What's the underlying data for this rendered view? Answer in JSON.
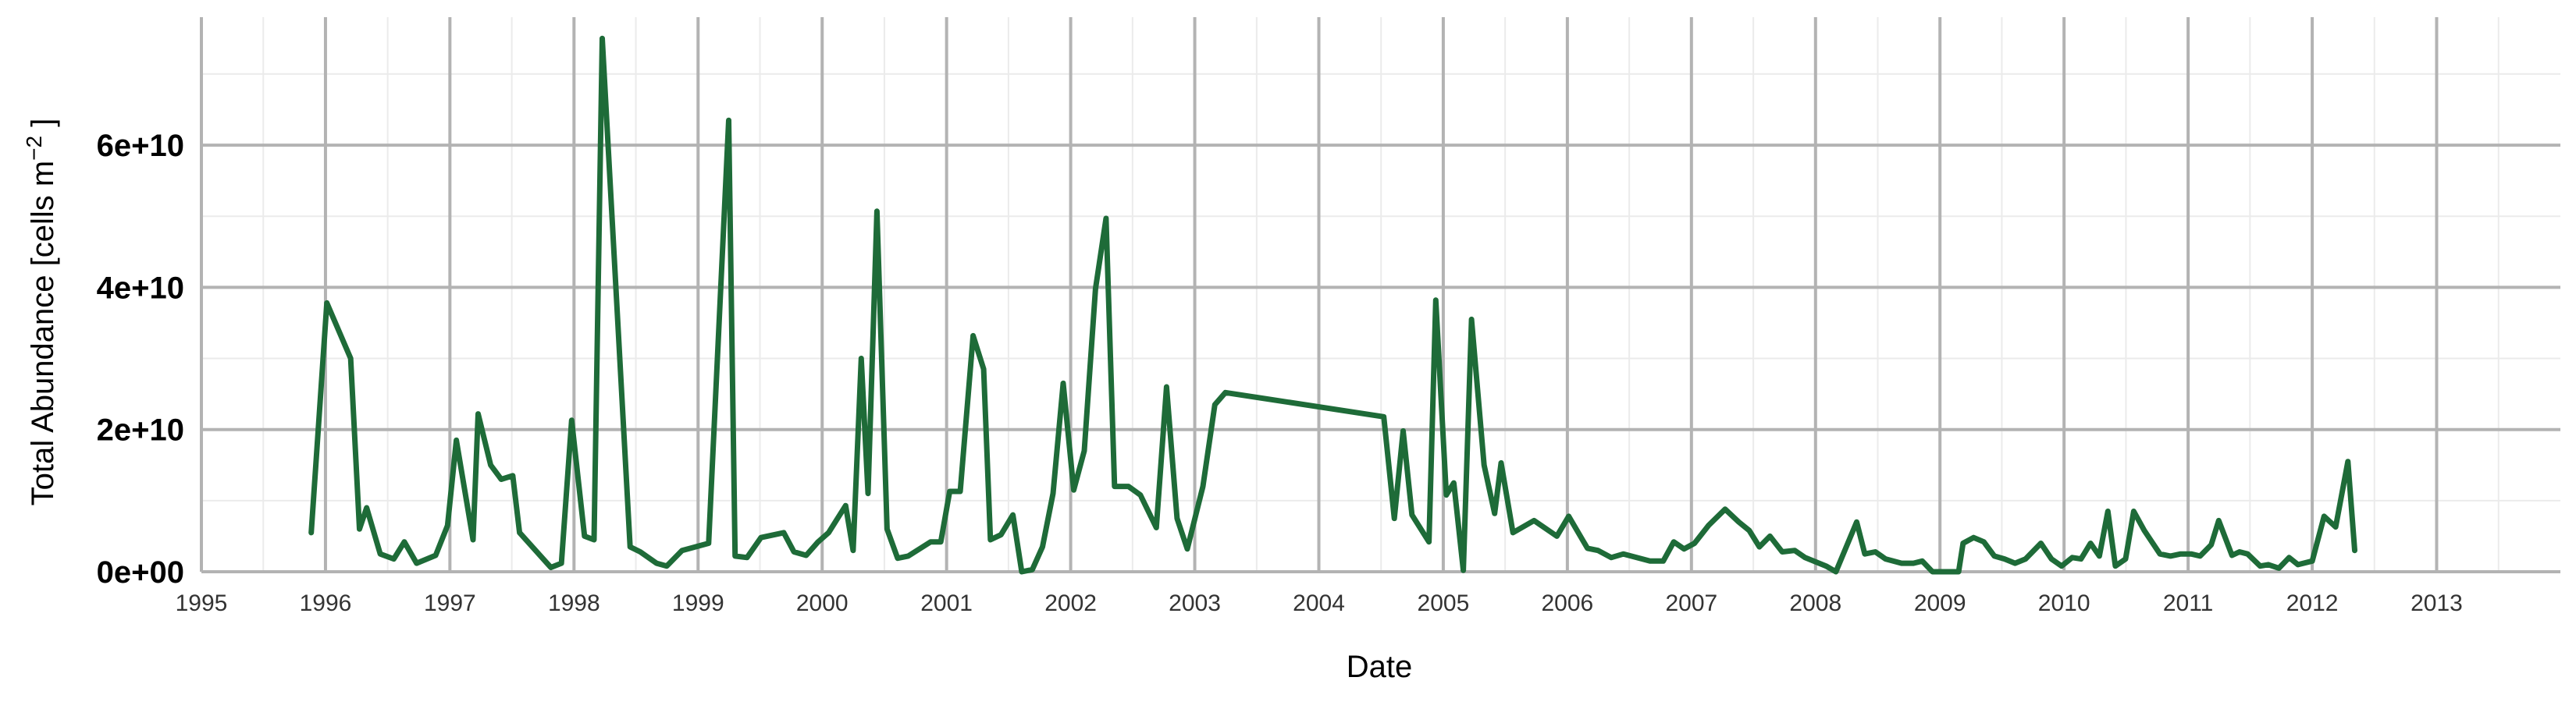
{
  "chart_data": {
    "type": "line",
    "xlabel": "Date",
    "ylabel": "Total Abundance [cells m",
    "ylabel_sup": "−2",
    "ylabel_suffix": " ]",
    "xlim": [
      "1995-01-01",
      "2013-12-31"
    ],
    "ylim": [
      0,
      78000000000
    ],
    "x_ticks": [
      "1995",
      "1996",
      "1997",
      "1998",
      "1999",
      "2000",
      "2001",
      "2002",
      "2003",
      "2004",
      "2005",
      "2006",
      "2007",
      "2008",
      "2009",
      "2010",
      "2011",
      "2012",
      "2013"
    ],
    "y_ticks": [
      {
        "value": 0,
        "label": "0e+00"
      },
      {
        "value": 20000000000,
        "label": "2e+10"
      },
      {
        "value": 40000000000,
        "label": "4e+10"
      },
      {
        "value": 60000000000,
        "label": "6e+10"
      }
    ],
    "grid": true,
    "colors": {
      "line": "#1e6b38",
      "grid_major": "#b3b3b3",
      "grid_minor": "#ebebeb"
    },
    "series": [
      {
        "color": "#1e6b38",
        "points": [
          [
            "1995-11-20",
            5500000000.0
          ],
          [
            "1996-01-05",
            37800000000.0
          ],
          [
            "1996-03-15",
            30000000000.0
          ],
          [
            "1996-04-10",
            6000000000.0
          ],
          [
            "1996-05-01",
            9000000000.0
          ],
          [
            "1996-06-10",
            2500000000.0
          ],
          [
            "1996-07-20",
            1800000000.0
          ],
          [
            "1996-08-20",
            4200000000.0
          ],
          [
            "1996-09-25",
            1200000000.0
          ],
          [
            "1996-11-20",
            2300000000.0
          ],
          [
            "1996-12-25",
            6500000000.0
          ],
          [
            "1997-01-20",
            18500000000.0
          ],
          [
            "1997-03-10",
            4500000000.0
          ],
          [
            "1997-03-25",
            22200000000.0
          ],
          [
            "1997-05-01",
            15000000000.0
          ],
          [
            "1997-06-01",
            13000000000.0
          ],
          [
            "1997-07-05",
            13500000000.0
          ],
          [
            "1997-07-25",
            5500000000.0
          ],
          [
            "1997-10-25",
            600000000.0
          ],
          [
            "1997-11-25",
            1200000000.0
          ],
          [
            "1997-12-25",
            21300000000.0
          ],
          [
            "1998-02-01",
            5000000000.0
          ],
          [
            "1998-03-01",
            4500000000.0
          ],
          [
            "1998-03-25",
            75000000000.0
          ],
          [
            "1998-06-15",
            3500000000.0
          ],
          [
            "1998-07-15",
            2800000000.0
          ],
          [
            "1998-09-01",
            1200000000.0
          ],
          [
            "1998-10-01",
            800000000.0
          ],
          [
            "1998-11-15",
            3000000000.0
          ],
          [
            "1999-02-01",
            4000000000.0
          ],
          [
            "1999-04-01",
            63500000000.0
          ],
          [
            "1999-04-20",
            2200000000.0
          ],
          [
            "1999-05-25",
            2000000000.0
          ],
          [
            "1999-07-05",
            4800000000.0
          ],
          [
            "1999-09-10",
            5500000000.0
          ],
          [
            "1999-10-10",
            2800000000.0
          ],
          [
            "1999-11-15",
            2300000000.0
          ],
          [
            "1999-12-20",
            4200000000.0
          ],
          [
            "2000-01-20",
            5500000000.0
          ],
          [
            "2000-03-10",
            9300000000.0
          ],
          [
            "2000-04-01",
            3000000000.0
          ],
          [
            "2000-04-25",
            30000000000.0
          ],
          [
            "2000-05-15",
            11000000000.0
          ],
          [
            "2000-06-10",
            50700000000.0
          ],
          [
            "2000-07-10",
            6000000000.0
          ],
          [
            "2000-08-10",
            1900000000.0
          ],
          [
            "2000-09-10",
            2200000000.0
          ],
          [
            "2000-11-15",
            4200000000.0
          ],
          [
            "2000-12-15",
            4200000000.0
          ],
          [
            "2001-01-10",
            11300000000.0
          ],
          [
            "2001-02-10",
            11300000000.0
          ],
          [
            "2001-03-20",
            33200000000.0
          ],
          [
            "2001-04-20",
            28500000000.0
          ],
          [
            "2001-05-10",
            4500000000.0
          ],
          [
            "2001-06-10",
            5200000000.0
          ],
          [
            "2001-07-15",
            8000000000.0
          ],
          [
            "2001-08-10",
            0.0
          ],
          [
            "2001-09-10",
            300000000.0
          ],
          [
            "2001-10-10",
            3500000000.0
          ],
          [
            "2001-11-10",
            11000000000.0
          ],
          [
            "2001-12-10",
            26500000000.0
          ],
          [
            "2002-01-10",
            11500000000.0
          ],
          [
            "2002-02-10",
            17000000000.0
          ],
          [
            "2002-03-15",
            39800000000.0
          ],
          [
            "2002-04-15",
            49700000000.0
          ],
          [
            "2002-05-10",
            12000000000.0
          ],
          [
            "2002-06-20",
            12000000000.0
          ],
          [
            "2002-07-25",
            10800000000.0
          ],
          [
            "2002-09-10",
            6200000000.0
          ],
          [
            "2002-10-10",
            26000000000.0
          ],
          [
            "2002-11-10",
            7500000000.0
          ],
          [
            "2002-12-10",
            3200000000.0
          ],
          [
            "2003-01-25",
            12000000000.0
          ],
          [
            "2003-03-01",
            23500000000.0
          ],
          [
            "2003-04-01",
            25200000000.0
          ],
          [
            "2004-07-10",
            21800000000.0
          ],
          [
            "2004-08-10",
            7500000000.0
          ],
          [
            "2004-09-05",
            19800000000.0
          ],
          [
            "2004-10-01",
            8000000000.0
          ],
          [
            "2004-11-20",
            4200000000.0
          ],
          [
            "2004-12-10",
            38200000000.0
          ],
          [
            "2005-01-10",
            10800000000.0
          ],
          [
            "2005-02-01",
            12500000000.0
          ],
          [
            "2005-03-01",
            200000000.0
          ],
          [
            "2005-03-25",
            35500000000.0
          ],
          [
            "2005-05-01",
            15000000000.0
          ],
          [
            "2005-06-01",
            8200000000.0
          ],
          [
            "2005-06-20",
            15300000000.0
          ],
          [
            "2005-07-25",
            5500000000.0
          ],
          [
            "2005-09-25",
            7200000000.0
          ],
          [
            "2005-12-01",
            5000000000.0
          ],
          [
            "2006-01-05",
            7800000000.0
          ],
          [
            "2006-03-01",
            3300000000.0
          ],
          [
            "2006-04-01",
            3000000000.0
          ],
          [
            "2006-05-10",
            2000000000.0
          ],
          [
            "2006-06-15",
            2500000000.0
          ],
          [
            "2006-09-01",
            1500000000.0
          ],
          [
            "2006-10-10",
            1500000000.0
          ],
          [
            "2006-11-10",
            4200000000.0
          ],
          [
            "2006-12-10",
            3200000000.0
          ],
          [
            "2007-01-10",
            4000000000.0
          ],
          [
            "2007-02-20",
            6500000000.0
          ],
          [
            "2007-04-10",
            8800000000.0
          ],
          [
            "2007-05-20",
            7000000000.0
          ],
          [
            "2007-06-20",
            5800000000.0
          ],
          [
            "2007-07-20",
            3500000000.0
          ],
          [
            "2007-08-20",
            5000000000.0
          ],
          [
            "2007-09-25",
            2800000000.0
          ],
          [
            "2007-11-01",
            3000000000.0
          ],
          [
            "2007-12-01",
            2000000000.0
          ],
          [
            "2008-02-01",
            800000000.0
          ],
          [
            "2008-03-01",
            0.0
          ],
          [
            "2008-05-01",
            7000000000.0
          ],
          [
            "2008-05-25",
            2500000000.0
          ],
          [
            "2008-06-25",
            2800000000.0
          ],
          [
            "2008-07-25",
            1800000000.0
          ],
          [
            "2008-09-10",
            1200000000.0
          ],
          [
            "2008-10-15",
            1200000000.0
          ],
          [
            "2008-11-10",
            1500000000.0
          ],
          [
            "2008-12-10",
            0.0
          ],
          [
            "2009-02-01",
            0.0
          ],
          [
            "2009-02-25",
            0.0
          ],
          [
            "2009-03-10",
            4000000000.0
          ],
          [
            "2009-04-10",
            4800000000.0
          ],
          [
            "2009-05-10",
            4200000000.0
          ],
          [
            "2009-06-10",
            2200000000.0
          ],
          [
            "2009-07-10",
            1800000000.0
          ],
          [
            "2009-08-10",
            1200000000.0
          ],
          [
            "2009-09-10",
            1800000000.0
          ],
          [
            "2009-10-25",
            4000000000.0
          ],
          [
            "2009-11-25",
            1800000000.0
          ],
          [
            "2009-12-25",
            800000000.0
          ],
          [
            "2010-01-25",
            2000000000.0
          ],
          [
            "2010-02-20",
            1800000000.0
          ],
          [
            "2010-03-20",
            4000000000.0
          ],
          [
            "2010-04-15",
            2200000000.0
          ],
          [
            "2010-05-10",
            8500000000.0
          ],
          [
            "2010-06-01",
            800000000.0
          ],
          [
            "2010-07-01",
            1800000000.0
          ],
          [
            "2010-07-25",
            8500000000.0
          ],
          [
            "2010-08-25",
            5800000000.0
          ],
          [
            "2010-10-10",
            2500000000.0
          ],
          [
            "2010-11-10",
            2200000000.0
          ],
          [
            "2010-12-10",
            2500000000.0
          ],
          [
            "2011-01-10",
            2500000000.0
          ],
          [
            "2011-02-05",
            2200000000.0
          ],
          [
            "2011-03-10",
            3800000000.0
          ],
          [
            "2011-04-01",
            7200000000.0
          ],
          [
            "2011-05-10",
            2300000000.0
          ],
          [
            "2011-06-01",
            2800000000.0
          ],
          [
            "2011-06-25",
            2500000000.0
          ],
          [
            "2011-08-01",
            800000000.0
          ],
          [
            "2011-08-25",
            1000000000.0
          ],
          [
            "2011-09-25",
            500000000.0
          ],
          [
            "2011-10-25",
            2000000000.0
          ],
          [
            "2011-11-20",
            1000000000.0
          ],
          [
            "2012-01-01",
            1500000000.0
          ],
          [
            "2012-02-05",
            7800000000.0
          ],
          [
            "2012-03-10",
            6300000000.0
          ],
          [
            "2012-04-15",
            15500000000.0
          ],
          [
            "2012-05-05",
            3000000000.0
          ]
        ]
      }
    ]
  }
}
